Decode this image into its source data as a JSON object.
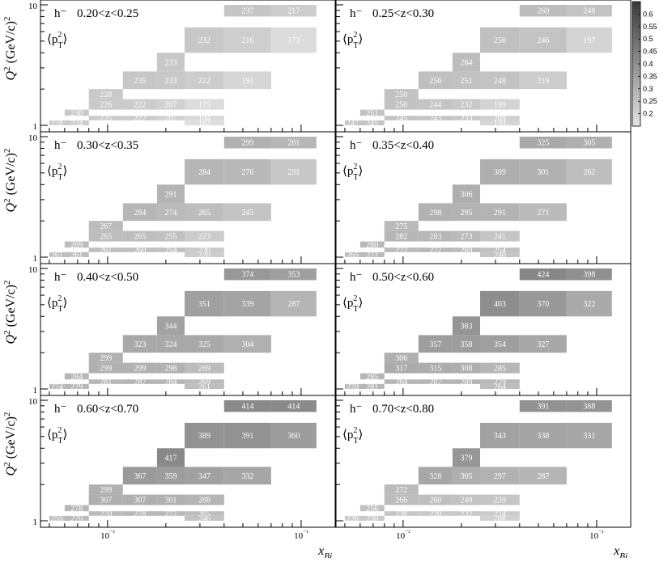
{
  "chart_data": {
    "type": "heatmap",
    "hadron_label": "h⁻",
    "zlabel_prefix": "⟨p",
    "y_tick_labels": [
      "1",
      "10"
    ],
    "x_tick_labels": [
      "10⁻²",
      "10⁻¹"
    ],
    "xlabel": "x_Bj",
    "ylabel": "Q² (GeV/c)²",
    "x_scale": "log",
    "y_scale": "log",
    "xlim": [
      0.0045,
      0.15
    ],
    "ylim": [
      1,
      10
    ],
    "colorbar": {
      "ticks": [
        "0.6",
        "0.55",
        "0.5",
        "0.45",
        "0.4",
        "0.35",
        "0.3",
        "0.25",
        "0.2"
      ],
      "range": [
        0.15,
        0.65
      ]
    },
    "x_bin_edges": [
      0.005,
      0.006,
      0.008,
      0.012,
      0.018,
      0.025,
      0.04,
      0.07,
      0.12
    ],
    "rows": [
      {
        "id": "R1",
        "q2_range": [
          8,
          10
        ]
      },
      {
        "id": "R2",
        "q2_range": [
          4,
          6.5
        ]
      },
      {
        "id": "R3",
        "q2_range": [
          2.8,
          4
        ]
      },
      {
        "id": "R4",
        "q2_range": [
          2,
          2.8
        ]
      },
      {
        "id": "R5",
        "q2_range": [
          1.65,
          2
        ]
      },
      {
        "id": "R6",
        "q2_range": [
          1.35,
          1.65
        ]
      },
      {
        "id": "R7",
        "q2_range": [
          1.2,
          1.35
        ]
      },
      {
        "id": "R8",
        "q2_range": [
          1.1,
          1.2
        ]
      },
      {
        "id": "R9",
        "q2_range": [
          1,
          1.1
        ]
      }
    ],
    "panels": [
      {
        "z_range": "0.20<z<0.25",
        "cells": [
          [
            "R1",
            6,
            237
          ],
          [
            "R1",
            7,
            217
          ],
          [
            "R2",
            5,
            232
          ],
          [
            "R2",
            6,
            216
          ],
          [
            "R2",
            7,
            173
          ],
          [
            "R3",
            4,
            233
          ],
          [
            "R4",
            3,
            235
          ],
          [
            "R4",
            4,
            233
          ],
          [
            "R4",
            5,
            222
          ],
          [
            "R4",
            6,
            191
          ],
          [
            "R5",
            2,
            228
          ],
          [
            "R6",
            2,
            226
          ],
          [
            "R6",
            3,
            222
          ],
          [
            "R6",
            4,
            207
          ],
          [
            "R6",
            5,
            175
          ],
          [
            "R7",
            1,
            230
          ],
          [
            "R8",
            2,
            225
          ],
          [
            "R8",
            3,
            222
          ],
          [
            "R8",
            4,
            207
          ],
          [
            "R8",
            5,
            184
          ],
          [
            "R9",
            0,
            228
          ],
          [
            "R9",
            1,
            224
          ],
          [
            "R9",
            5,
            167
          ]
        ]
      },
      {
        "z_range": "0.25<z<0.30",
        "cells": [
          [
            "R1",
            6,
            269
          ],
          [
            "R1",
            7,
            248
          ],
          [
            "R2",
            5,
            256
          ],
          [
            "R2",
            6,
            246
          ],
          [
            "R2",
            7,
            197
          ],
          [
            "R3",
            4,
            264
          ],
          [
            "R4",
            3,
            256
          ],
          [
            "R4",
            4,
            251
          ],
          [
            "R4",
            5,
            248
          ],
          [
            "R4",
            6,
            219
          ],
          [
            "R5",
            2,
            250
          ],
          [
            "R6",
            2,
            250
          ],
          [
            "R6",
            3,
            244
          ],
          [
            "R6",
            4,
            232
          ],
          [
            "R6",
            5,
            199
          ],
          [
            "R7",
            1,
            251
          ],
          [
            "R8",
            2,
            245
          ],
          [
            "R8",
            3,
            243
          ],
          [
            "R8",
            4,
            233
          ],
          [
            "R8",
            5,
            209
          ],
          [
            "R9",
            0,
            247
          ],
          [
            "R9",
            1,
            245
          ],
          [
            "R9",
            5,
            193
          ]
        ]
      },
      {
        "z_range": "0.30<z<0.35",
        "cells": [
          [
            "R1",
            6,
            299
          ],
          [
            "R1",
            7,
            281
          ],
          [
            "R2",
            5,
            284
          ],
          [
            "R2",
            6,
            276
          ],
          [
            "R2",
            7,
            231
          ],
          [
            "R3",
            4,
            291
          ],
          [
            "R4",
            3,
            284
          ],
          [
            "R4",
            4,
            274
          ],
          [
            "R4",
            5,
            265
          ],
          [
            "R4",
            6,
            245
          ],
          [
            "R5",
            2,
            267
          ],
          [
            "R6",
            2,
            265
          ],
          [
            "R6",
            3,
            265
          ],
          [
            "R6",
            4,
            255
          ],
          [
            "R6",
            5,
            223
          ],
          [
            "R7",
            1,
            269
          ],
          [
            "R8",
            2,
            261
          ],
          [
            "R8",
            3,
            260
          ],
          [
            "R8",
            4,
            254
          ],
          [
            "R8",
            5,
            230
          ],
          [
            "R9",
            0,
            261
          ],
          [
            "R9",
            1,
            261
          ],
          [
            "R9",
            5,
            220
          ]
        ]
      },
      {
        "z_range": "0.35<z<0.40",
        "cells": [
          [
            "R1",
            6,
            325
          ],
          [
            "R1",
            7,
            305
          ],
          [
            "R2",
            5,
            309
          ],
          [
            "R2",
            6,
            301
          ],
          [
            "R2",
            7,
            262
          ],
          [
            "R3",
            4,
            306
          ],
          [
            "R4",
            3,
            298
          ],
          [
            "R4",
            4,
            295
          ],
          [
            "R4",
            5,
            291
          ],
          [
            "R4",
            6,
            271
          ],
          [
            "R5",
            2,
            275
          ],
          [
            "R6",
            2,
            282
          ],
          [
            "R6",
            3,
            283
          ],
          [
            "R6",
            4,
            273
          ],
          [
            "R6",
            5,
            241
          ],
          [
            "R7",
            1,
            280
          ],
          [
            "R8",
            2,
            272
          ],
          [
            "R8",
            3,
            277
          ],
          [
            "R8",
            4,
            269
          ],
          [
            "R8",
            5,
            254
          ],
          [
            "R9",
            0,
            265
          ],
          [
            "R9",
            1,
            271
          ],
          [
            "R9",
            5,
            240
          ]
        ]
      },
      {
        "z_range": "0.40<z<0.50",
        "cells": [
          [
            "R1",
            6,
            374
          ],
          [
            "R1",
            7,
            353
          ],
          [
            "R2",
            5,
            351
          ],
          [
            "R2",
            6,
            339
          ],
          [
            "R2",
            7,
            287
          ],
          [
            "R3",
            4,
            344
          ],
          [
            "R4",
            3,
            323
          ],
          [
            "R4",
            4,
            324
          ],
          [
            "R4",
            5,
            325
          ],
          [
            "R4",
            6,
            304
          ],
          [
            "R5",
            2,
            299
          ],
          [
            "R6",
            2,
            299
          ],
          [
            "R6",
            3,
            299
          ],
          [
            "R6",
            4,
            298
          ],
          [
            "R6",
            5,
            269
          ],
          [
            "R7",
            1,
            284
          ],
          [
            "R8",
            2,
            281
          ],
          [
            "R8",
            3,
            287
          ],
          [
            "R8",
            4,
            284
          ],
          [
            "R8",
            5,
            269
          ],
          [
            "R9",
            0,
            274
          ],
          [
            "R9",
            1,
            279
          ],
          [
            "R9",
            5,
            261
          ]
        ]
      },
      {
        "z_range": "0.50<z<0.60",
        "cells": [
          [
            "R1",
            6,
            424
          ],
          [
            "R1",
            7,
            398
          ],
          [
            "R2",
            5,
            403
          ],
          [
            "R2",
            6,
            370
          ],
          [
            "R2",
            7,
            322
          ],
          [
            "R3",
            4,
            383
          ],
          [
            "R4",
            3,
            357
          ],
          [
            "R4",
            4,
            358
          ],
          [
            "R4",
            5,
            354
          ],
          [
            "R4",
            6,
            327
          ],
          [
            "R5",
            2,
            306
          ],
          [
            "R6",
            2,
            317
          ],
          [
            "R6",
            3,
            315
          ],
          [
            "R6",
            4,
            308
          ],
          [
            "R6",
            5,
            285
          ],
          [
            "R7",
            1,
            285
          ],
          [
            "R8",
            2,
            284
          ],
          [
            "R8",
            3,
            287
          ],
          [
            "R8",
            4,
            289
          ],
          [
            "R8",
            5,
            279
          ],
          [
            "R9",
            0,
            270
          ],
          [
            "R9",
            1,
            281
          ],
          [
            "R9",
            5,
            264
          ]
        ]
      },
      {
        "z_range": "0.60<z<0.70",
        "cells": [
          [
            "R1",
            6,
            414
          ],
          [
            "R1",
            7,
            414
          ],
          [
            "R2",
            5,
            389
          ],
          [
            "R2",
            6,
            391
          ],
          [
            "R2",
            7,
            360
          ],
          [
            "R3",
            4,
            417
          ],
          [
            "R4",
            3,
            367
          ],
          [
            "R4",
            4,
            359
          ],
          [
            "R4",
            5,
            347
          ],
          [
            "R4",
            6,
            332
          ],
          [
            "R5",
            2,
            299
          ],
          [
            "R6",
            2,
            307
          ],
          [
            "R6",
            3,
            307
          ],
          [
            "R6",
            4,
            301
          ],
          [
            "R6",
            5,
            288
          ],
          [
            "R7",
            1,
            278
          ],
          [
            "R8",
            2,
            270
          ],
          [
            "R8",
            3,
            278
          ],
          [
            "R8",
            4,
            277
          ],
          [
            "R8",
            5,
            265
          ],
          [
            "R9",
            0,
            255
          ],
          [
            "R9",
            1,
            270
          ],
          [
            "R9",
            5,
            246
          ]
        ]
      },
      {
        "z_range": "0.70<z<0.80",
        "cells": [
          [
            "R1",
            6,
            391
          ],
          [
            "R1",
            7,
            388
          ],
          [
            "R2",
            5,
            343
          ],
          [
            "R2",
            6,
            338
          ],
          [
            "R2",
            7,
            331
          ],
          [
            "R3",
            4,
            379
          ],
          [
            "R4",
            3,
            328
          ],
          [
            "R4",
            4,
            305
          ],
          [
            "R4",
            5,
            297
          ],
          [
            "R4",
            6,
            287
          ],
          [
            "R5",
            2,
            272
          ],
          [
            "R6",
            2,
            266
          ],
          [
            "R6",
            3,
            260
          ],
          [
            "R6",
            4,
            249
          ],
          [
            "R6",
            5,
            239
          ],
          [
            "R7",
            1,
            256
          ],
          [
            "R8",
            2,
            238
          ],
          [
            "R8",
            3,
            230
          ],
          [
            "R8",
            4,
            232
          ],
          [
            "R8",
            5,
            224
          ],
          [
            "R9",
            0,
            226
          ],
          [
            "R9",
            1,
            230
          ],
          [
            "R9",
            5,
            208
          ]
        ]
      }
    ]
  }
}
